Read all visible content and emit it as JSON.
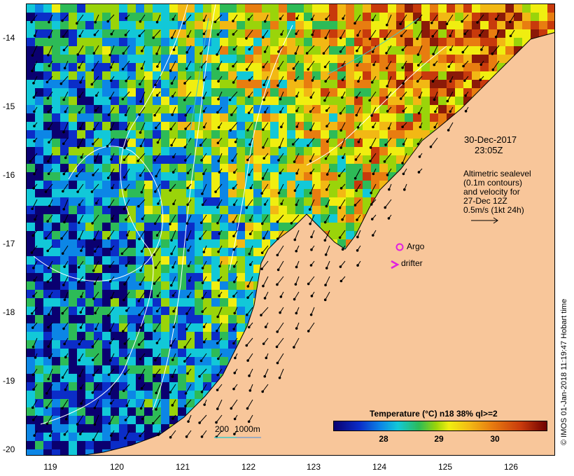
{
  "axes": {
    "y_labels": [
      "-14",
      "-15",
      "-16",
      "-17",
      "-18",
      "-19",
      "-20"
    ],
    "x_labels": [
      "119",
      "120",
      "121",
      "122",
      "123",
      "124",
      "125",
      "126"
    ]
  },
  "timestamp": {
    "date": "30-Dec-2017",
    "time": "23:05Z"
  },
  "legend_notes": {
    "line1": "Altimetric sealevel",
    "line2": "(0.1m contours)",
    "line3": "and velocity for",
    "line4": "27-Dec 12Z",
    "line5": "0.5m/s (1kt 24h)"
  },
  "markers": {
    "argo_label": "Argo",
    "drifter_label": "drifter",
    "argo_color": "#e020e0",
    "drifter_color": "#e020e0"
  },
  "depth_scale": {
    "label1": "200",
    "label2": "1000m",
    "color": "#40c8c8"
  },
  "colorbar": {
    "title": "Temperature (°C) n18 38% ql>=2",
    "ticks": [
      "28",
      "29",
      "30"
    ]
  },
  "copyright": "© IMOS 01-Jan-2018 11:19:47 Hobart time",
  "colors": {
    "land": "#f8c69a",
    "coastline": "#000000",
    "contour": "#ffffff"
  }
}
